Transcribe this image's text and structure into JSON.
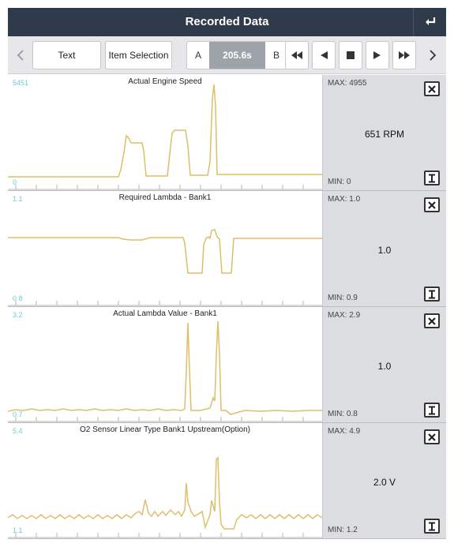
{
  "header": {
    "title": "Recorded Data"
  },
  "toolbar": {
    "text_label": "Text",
    "item_selection_label": "Item Selection",
    "marker_a": "A",
    "time": "205.6s",
    "marker_b": "B"
  },
  "colors": {
    "trace": "#dfbe6a",
    "scale": "#6ecbd6",
    "header": "#2f3a4a"
  },
  "panels": [
    {
      "title": "Actual Engine Speed",
      "scale_max": "5451",
      "scale_min": "0",
      "max": "MAX: 4955",
      "min": "MIN: 0",
      "value": "651 RPM"
    },
    {
      "title": "Required Lambda - Bank1",
      "scale_max": "1.1",
      "scale_min": "0.8",
      "max": "MAX: 1.0",
      "min": "MIN: 0.9",
      "value": "1.0"
    },
    {
      "title": "Actual Lambda Value - Bank1",
      "scale_max": "3.2",
      "scale_min": "0.7",
      "max": "MAX: 2.9",
      "min": "MIN: 0.8",
      "value": "1.0"
    },
    {
      "title": "O2 Sensor Linear Type Bank1 Upstream(Option)",
      "scale_max": "5.4",
      "scale_min": "1.1",
      "max": "MAX: 4.9",
      "min": "MIN: 1.2",
      "value": "2.0 V"
    }
  ]
}
